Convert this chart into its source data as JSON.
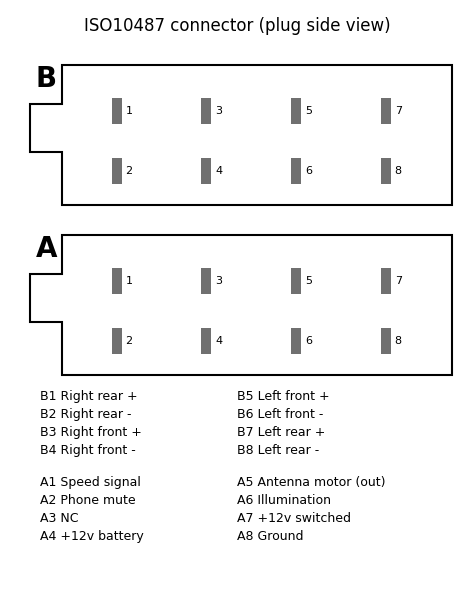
{
  "title": "ISO10487 connector (plug side view)",
  "title_fontsize": 12,
  "background_color": "#ffffff",
  "pin_color": "#707070",
  "label_B": "B",
  "label_A": "A",
  "B_legend": [
    "B1 Right rear +",
    "B2 Right rear -",
    "B3 Right front +",
    "B4 Right front -"
  ],
  "B_legend_right": [
    "B5 Left front +",
    "B6 Left front -",
    "B7 Left rear +",
    "B8 Left rear -"
  ],
  "A_legend": [
    "A1 Speed signal",
    "A2 Phone mute",
    "A3 NC",
    "A4 +12v battery"
  ],
  "A_legend_right": [
    "A5 Antenna motor (out)",
    "A6 Illumination",
    "A7 +12v switched",
    "A8 Ground"
  ],
  "pin_labels_row1": [
    "1",
    "3",
    "5",
    "7"
  ],
  "pin_labels_row2": [
    "2",
    "4",
    "6",
    "8"
  ],
  "legend_fontsize": 9,
  "connector_label_fontsize": 20,
  "pin_fontsize": 8
}
